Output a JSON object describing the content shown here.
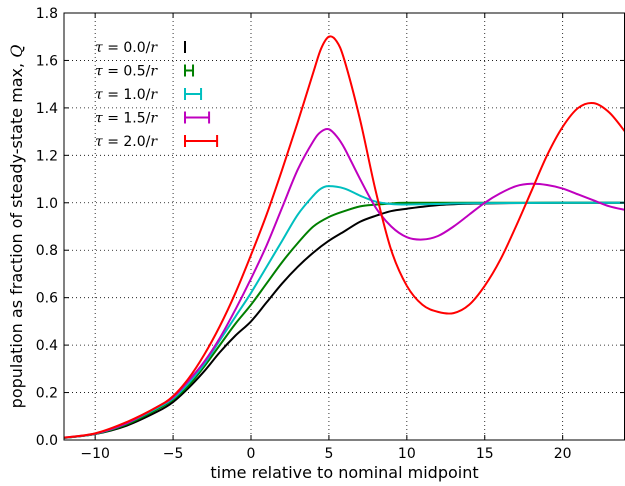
{
  "chart_data": {
    "type": "line",
    "title": "",
    "xlabel": "time relative to nominal midpoint",
    "ylabel": "population as fraction of steady-state max, ",
    "ylabel_symbol": "Q",
    "xlim": [
      -12,
      24
    ],
    "ylim": [
      0.0,
      1.8
    ],
    "x_ticks": [
      -10,
      -5,
      0,
      5,
      10,
      15,
      20
    ],
    "y_ticks": [
      0.0,
      0.2,
      0.4,
      0.6,
      0.8,
      1.0,
      1.2,
      1.4,
      1.6,
      1.8
    ],
    "x_tick_labels": [
      "−10",
      "−5",
      "0",
      "5",
      "10",
      "15",
      "20"
    ],
    "y_tick_labels": [
      "0.0",
      "0.2",
      "0.4",
      "0.6",
      "0.8",
      "1.0",
      "1.2",
      "1.4",
      "1.6",
      "1.8"
    ],
    "grid": true,
    "legend_position": "top-left",
    "series": [
      {
        "name": "τ = 0.0/r",
        "label_parts": [
          "τ",
          " = 0.0/",
          "r"
        ],
        "tau": 0.0,
        "color": "#000000",
        "points": [
          [
            -12,
            0.009
          ],
          [
            -10,
            0.025
          ],
          [
            -8,
            0.06
          ],
          [
            -6,
            0.12
          ],
          [
            -5,
            0.16
          ],
          [
            -4,
            0.22
          ],
          [
            -3,
            0.29
          ],
          [
            -2,
            0.37
          ],
          [
            -1,
            0.44
          ],
          [
            0,
            0.5
          ],
          [
            1,
            0.58
          ],
          [
            2,
            0.66
          ],
          [
            3,
            0.73
          ],
          [
            4,
            0.79
          ],
          [
            5,
            0.84
          ],
          [
            6,
            0.88
          ],
          [
            7,
            0.92
          ],
          [
            8,
            0.945
          ],
          [
            9,
            0.965
          ],
          [
            10,
            0.975
          ],
          [
            12,
            0.99
          ],
          [
            14,
            0.996
          ],
          [
            16,
            0.998
          ],
          [
            20,
            1.0
          ],
          [
            24,
            1.0
          ]
        ]
      },
      {
        "name": "τ = 0.5/r",
        "label_parts": [
          "τ",
          " = 0.5/",
          "r"
        ],
        "tau": 0.5,
        "color": "#007f00",
        "points": [
          [
            -12,
            0.009
          ],
          [
            -10,
            0.025
          ],
          [
            -8,
            0.065
          ],
          [
            -6,
            0.13
          ],
          [
            -5,
            0.17
          ],
          [
            -4,
            0.23
          ],
          [
            -3,
            0.31
          ],
          [
            -2,
            0.4
          ],
          [
            -1,
            0.49
          ],
          [
            0,
            0.57
          ],
          [
            1,
            0.66
          ],
          [
            2,
            0.75
          ],
          [
            3,
            0.83
          ],
          [
            4,
            0.9
          ],
          [
            5,
            0.94
          ],
          [
            6,
            0.965
          ],
          [
            7,
            0.985
          ],
          [
            8,
            0.992
          ],
          [
            9,
            0.997
          ],
          [
            10,
            1.0
          ],
          [
            14,
            1.0
          ],
          [
            20,
            1.0
          ],
          [
            24,
            1.0
          ]
        ]
      },
      {
        "name": "τ = 1.0/r",
        "label_parts": [
          "τ",
          " = 1.0/",
          "r"
        ],
        "tau": 1.0,
        "color": "#00bfbf",
        "points": [
          [
            -12,
            0.009
          ],
          [
            -10,
            0.026
          ],
          [
            -8,
            0.07
          ],
          [
            -6,
            0.135
          ],
          [
            -5,
            0.175
          ],
          [
            -4,
            0.24
          ],
          [
            -3,
            0.32
          ],
          [
            -2,
            0.42
          ],
          [
            -1,
            0.52
          ],
          [
            0,
            0.62
          ],
          [
            1,
            0.73
          ],
          [
            2,
            0.84
          ],
          [
            3,
            0.95
          ],
          [
            4,
            1.03
          ],
          [
            4.5,
            1.06
          ],
          [
            5,
            1.07
          ],
          [
            6,
            1.06
          ],
          [
            7,
            1.03
          ],
          [
            8,
            1.005
          ],
          [
            9,
            0.995
          ],
          [
            10,
            0.993
          ],
          [
            12,
            0.995
          ],
          [
            14,
            0.998
          ],
          [
            20,
            1.0
          ],
          [
            24,
            1.0
          ]
        ]
      },
      {
        "name": "τ = 1.5/r",
        "label_parts": [
          "τ",
          " = 1.5/",
          "r"
        ],
        "tau": 1.5,
        "color": "#bf00bf",
        "points": [
          [
            -12,
            0.01
          ],
          [
            -10,
            0.027
          ],
          [
            -8,
            0.07
          ],
          [
            -6,
            0.14
          ],
          [
            -5,
            0.18
          ],
          [
            -4,
            0.25
          ],
          [
            -3,
            0.33
          ],
          [
            -2,
            0.43
          ],
          [
            -1,
            0.55
          ],
          [
            0,
            0.68
          ],
          [
            1,
            0.82
          ],
          [
            2,
            0.98
          ],
          [
            3,
            1.14
          ],
          [
            4,
            1.26
          ],
          [
            4.5,
            1.3
          ],
          [
            5,
            1.31
          ],
          [
            5.5,
            1.28
          ],
          [
            6,
            1.23
          ],
          [
            7,
            1.1
          ],
          [
            8,
            0.98
          ],
          [
            9,
            0.9
          ],
          [
            10,
            0.855
          ],
          [
            11,
            0.845
          ],
          [
            12,
            0.86
          ],
          [
            13,
            0.9
          ],
          [
            14,
            0.95
          ],
          [
            15,
            1.0
          ],
          [
            16,
            1.04
          ],
          [
            17,
            1.07
          ],
          [
            18,
            1.08
          ],
          [
            19,
            1.075
          ],
          [
            20,
            1.06
          ],
          [
            21,
            1.035
          ],
          [
            22,
            1.01
          ],
          [
            23,
            0.985
          ],
          [
            24,
            0.97
          ]
        ]
      },
      {
        "name": "τ = 2.0/r",
        "label_parts": [
          "τ",
          " = 2.0/",
          "r"
        ],
        "tau": 2.0,
        "color": "#ff0000",
        "points": [
          [
            -12,
            0.01
          ],
          [
            -10,
            0.028
          ],
          [
            -8,
            0.075
          ],
          [
            -6,
            0.14
          ],
          [
            -5,
            0.185
          ],
          [
            -4,
            0.26
          ],
          [
            -3,
            0.36
          ],
          [
            -2,
            0.48
          ],
          [
            -1,
            0.62
          ],
          [
            0,
            0.78
          ],
          [
            1,
            0.95
          ],
          [
            2,
            1.14
          ],
          [
            3,
            1.34
          ],
          [
            4,
            1.55
          ],
          [
            4.5,
            1.65
          ],
          [
            5,
            1.7
          ],
          [
            5.5,
            1.68
          ],
          [
            6,
            1.6
          ],
          [
            7,
            1.35
          ],
          [
            8,
            1.05
          ],
          [
            9,
            0.8
          ],
          [
            10,
            0.65
          ],
          [
            11,
            0.57
          ],
          [
            12,
            0.54
          ],
          [
            13,
            0.535
          ],
          [
            14,
            0.57
          ],
          [
            15,
            0.65
          ],
          [
            16,
            0.76
          ],
          [
            17,
            0.9
          ],
          [
            18,
            1.05
          ],
          [
            19,
            1.2
          ],
          [
            20,
            1.32
          ],
          [
            21,
            1.4
          ],
          [
            22,
            1.42
          ],
          [
            23,
            1.38
          ],
          [
            24,
            1.3
          ]
        ]
      }
    ]
  }
}
